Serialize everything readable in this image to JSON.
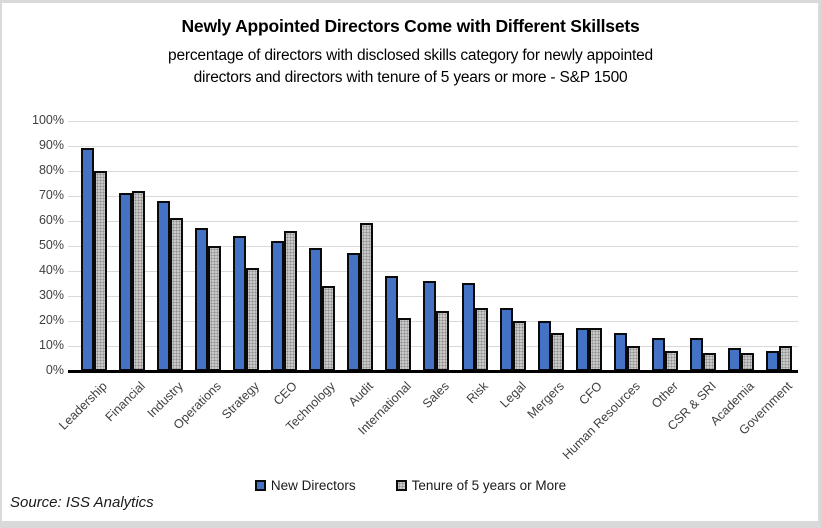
{
  "title": "Newly Appointed Directors Come with Different Skillsets",
  "subtitle_line1": "percentage of directors with disclosed skills category for newly appointed",
  "subtitle_line2": "directors and directors with tenure of 5 years or more - S&P 1500",
  "source": "Source: ISS Analytics",
  "colors": {
    "new_directors": "#4472c4",
    "tenure": "#c8c8c8",
    "bar_border": "#0a0a0a",
    "gridline": "#d9d9d9",
    "axis": "#000000",
    "tick_label": "#404040"
  },
  "chart_data": {
    "type": "bar",
    "title": "Newly Appointed Directors Come with Different Skillsets",
    "subtitle": "percentage of directors with disclosed skills category for newly appointed directors and directors with tenure of 5 years or more - S&P 1500",
    "categories": [
      "Leadership",
      "Financial",
      "Industry",
      "Operations",
      "Strategy",
      "CEO",
      "Technology",
      "Audit",
      "International",
      "Sales",
      "Risk",
      "Legal",
      "Mergers",
      "CFO",
      "Human Resources",
      "Other",
      "CSR & SRI",
      "Academia",
      "Government"
    ],
    "series": [
      {
        "name": "New Directors",
        "color": "#4472c4",
        "values": [
          89,
          71,
          68,
          57,
          54,
          52,
          49,
          47,
          38,
          36,
          35,
          25,
          20,
          17,
          15,
          13,
          13,
          9,
          8
        ]
      },
      {
        "name": "Tenure of 5 years or More",
        "color": "#c8c8c8",
        "pattern": "dotted",
        "values": [
          80,
          72,
          61,
          50,
          41,
          56,
          34,
          59,
          21,
          24,
          25,
          20,
          15,
          17,
          10,
          8,
          7,
          7,
          10
        ]
      }
    ],
    "xlabel": "",
    "ylabel": "",
    "ylim": [
      0,
      100
    ],
    "ytick_step": 10,
    "yticks": [
      "100%",
      "90%",
      "80%",
      "70%",
      "60%",
      "50%",
      "40%",
      "30%",
      "20%",
      "10%",
      "0%"
    ],
    "ytick_format": "percent",
    "grid": true,
    "legend_position": "bottom",
    "x_label_rotation_deg": 45
  }
}
